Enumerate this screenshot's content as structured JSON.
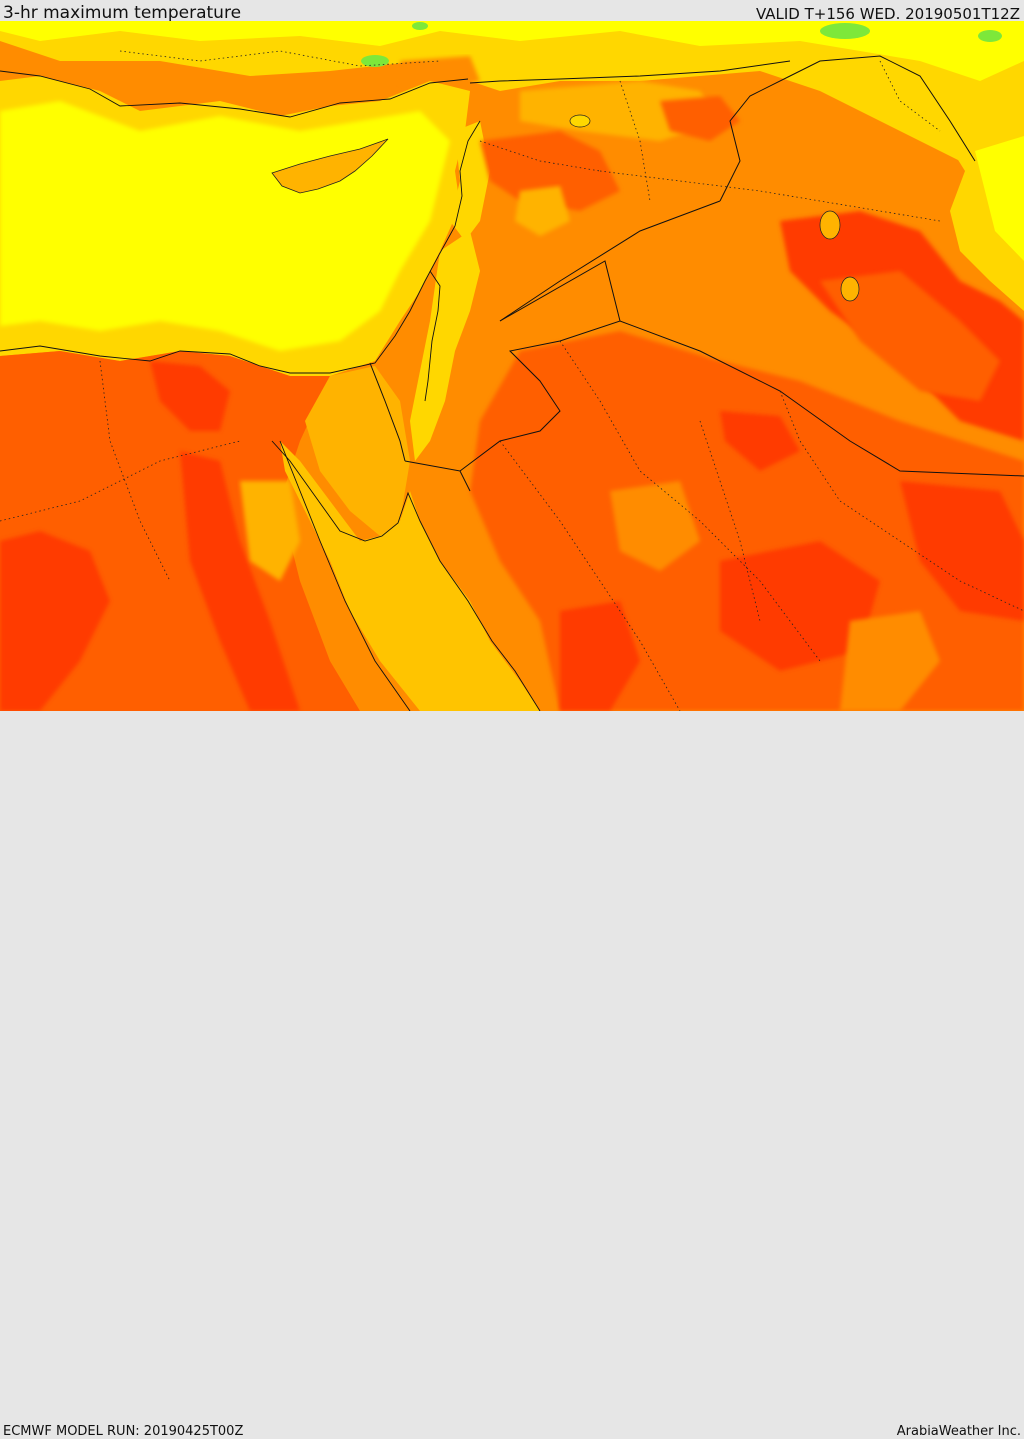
{
  "header": {
    "title": "3-hr maximum temperature",
    "valid": "VALID T+156 WED. 20190501T12Z"
  },
  "footer": {
    "model_run": "ECMWF MODEL RUN: 20190425T00Z",
    "credit": "ArabiaWeather Inc."
  },
  "palette": {
    "green": "#7de83a",
    "yellow_light": "#f2f23c",
    "yellow": "#ffff00",
    "gold": "#ffd700",
    "amber": "#ffb300",
    "orange": "#ff8c00",
    "orange_dark": "#ff5f00",
    "red": "#ff3a00",
    "water_med": "#ffdc00",
    "water_red_sea": "#ffc400"
  }
}
